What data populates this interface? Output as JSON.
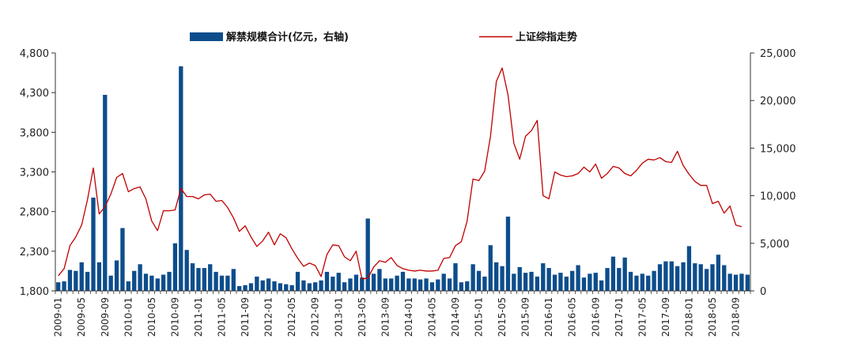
{
  "chart_data": {
    "type": "bar",
    "legend": {
      "placement": "top",
      "bar_label": "解禁规模合计(亿元，右轴)",
      "line_label": "上证综指走势"
    },
    "colors": {
      "bar": "#0d4d8c",
      "line": "#c00000",
      "axis": "#333333"
    },
    "left_axis": {
      "range": [
        1800,
        4800
      ],
      "ticks": [
        1800,
        2300,
        2800,
        3300,
        3800,
        4300,
        4800
      ],
      "tick_labels": [
        "1,800",
        "2,300",
        "2,800",
        "3,300",
        "3,800",
        "4,300",
        "4,800"
      ]
    },
    "right_axis": {
      "range": [
        0,
        25000
      ],
      "ticks": [
        0,
        5000,
        10000,
        15000,
        20000,
        25000
      ],
      "tick_labels": [
        "0",
        "5,000",
        "10,000",
        "15,000",
        "20,000",
        "25,000"
      ]
    },
    "x_tick_labels": [
      "2009-01",
      "2009-05",
      "2009-09",
      "2010-01",
      "2010-05",
      "2010-09",
      "2011-01",
      "2011-05",
      "2011-09",
      "2012-01",
      "2012-05",
      "2012-09",
      "2013-01",
      "2013-05",
      "2013-09",
      "2014-01",
      "2014-05",
      "2014-09",
      "2015-01",
      "2015-05",
      "2015-09",
      "2016-01",
      "2016-05",
      "2016-09",
      "2017-01",
      "2017-05",
      "2017-09",
      "2018-01",
      "2018-05",
      "2018-09"
    ],
    "series": [
      {
        "name": "解禁规模合计(亿元，右轴)",
        "axis": "right",
        "type": "bar",
        "values": [
          900,
          1000,
          2200,
          2100,
          3000,
          2000,
          9800,
          3000,
          20600,
          1600,
          3200,
          6600,
          1000,
          2100,
          2800,
          1800,
          1600,
          1300,
          1700,
          2000,
          5000,
          23600,
          4300,
          2900,
          2400,
          2400,
          2800,
          2000,
          1600,
          1600,
          2300,
          500,
          600,
          800,
          1500,
          1100,
          1300,
          1000,
          800,
          700,
          600,
          2000,
          1100,
          800,
          900,
          1100,
          2000,
          1500,
          1900,
          900,
          1300,
          1700,
          1400,
          7600,
          1800,
          2300,
          1300,
          1300,
          1600,
          2000,
          1300,
          1300,
          1200,
          1300,
          900,
          1200,
          1800,
          1300,
          2900,
          900,
          1000,
          2800,
          2100,
          1500,
          4800,
          3000,
          2600,
          7800,
          1800,
          2500,
          1900,
          2000,
          1500,
          2900,
          2400,
          1700,
          1900,
          1500,
          2100,
          2700,
          1400,
          1800,
          1900,
          1100,
          2400,
          3600,
          2400,
          3500,
          2000,
          1600,
          1800,
          1600,
          2100,
          2800,
          3100,
          3100,
          2600,
          3000,
          4700,
          2900,
          2800,
          2300,
          2800,
          3800,
          2700,
          1800,
          1700,
          1800,
          1700
        ]
      },
      {
        "name": "上证综指走势",
        "axis": "left",
        "type": "line",
        "values": [
          1990,
          2080,
          2370,
          2480,
          2630,
          2950,
          3350,
          2770,
          2860,
          3020,
          3230,
          3280,
          3050,
          3090,
          3110,
          2960,
          2680,
          2560,
          2810,
          2810,
          2820,
          3090,
          2990,
          2990,
          2960,
          3010,
          3020,
          2930,
          2940,
          2850,
          2720,
          2550,
          2620,
          2480,
          2360,
          2430,
          2540,
          2380,
          2520,
          2470,
          2330,
          2210,
          2110,
          2150,
          2120,
          1980,
          2260,
          2380,
          2370,
          2230,
          2180,
          2300,
          1950,
          1960,
          2100,
          2180,
          2160,
          2220,
          2120,
          2080,
          2060,
          2050,
          2060,
          2050,
          2050,
          2060,
          2210,
          2220,
          2370,
          2420,
          2680,
          3210,
          3190,
          3310,
          3750,
          4440,
          4610,
          4270,
          3660,
          3460,
          3750,
          3820,
          3950,
          3000,
          2960,
          3300,
          3260,
          3240,
          3250,
          3280,
          3360,
          3300,
          3400,
          3220,
          3280,
          3370,
          3350,
          3280,
          3250,
          3320,
          3410,
          3460,
          3450,
          3480,
          3430,
          3420,
          3560,
          3380,
          3270,
          3180,
          3130,
          3130,
          2900,
          2930,
          2780,
          2870,
          2630,
          2610
        ]
      }
    ]
  }
}
